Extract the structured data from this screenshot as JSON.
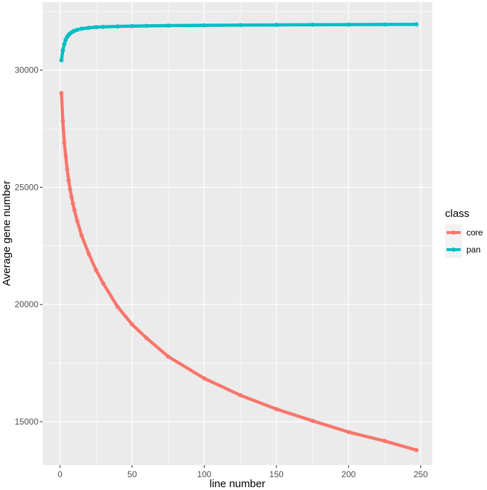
{
  "chart_data": {
    "type": "line",
    "xlabel": "line number",
    "ylabel": "Average gene number",
    "xlim": [
      -12,
      258
    ],
    "ylim": [
      13150,
      32900
    ],
    "x_ticks": [
      0,
      50,
      100,
      150,
      200,
      250
    ],
    "x_tick_labels": [
      "0",
      "50",
      "100",
      "150",
      "200",
      "250"
    ],
    "y_ticks": [
      15000,
      20000,
      25000,
      30000
    ],
    "y_tick_labels": [
      "15000",
      "20000",
      "25000",
      "30000"
    ],
    "grid": true,
    "legend": {
      "title": "class",
      "placement": "right"
    },
    "x": [
      1,
      2,
      3,
      4,
      5,
      6,
      7,
      8,
      9,
      10,
      12,
      15,
      20,
      25,
      30,
      40,
      50,
      60,
      75,
      100,
      125,
      150,
      175,
      200,
      225,
      247
    ],
    "series": [
      {
        "name": "core",
        "color": "#F8766D",
        "values": [
          29020,
          27830,
          26900,
          26330,
          25760,
          25300,
          24920,
          24590,
          24300,
          24030,
          23560,
          22940,
          22160,
          21470,
          20900,
          19900,
          19150,
          18570,
          17780,
          16850,
          16130,
          15540,
          15040,
          14560,
          14180,
          13790
        ]
      },
      {
        "name": "pan",
        "color": "#00BFC4",
        "values": [
          30420,
          30850,
          31110,
          31300,
          31420,
          31500,
          31560,
          31610,
          31645,
          31675,
          31720,
          31765,
          31805,
          31830,
          31845,
          31865,
          31878,
          31888,
          31898,
          31910,
          31920,
          31928,
          31935,
          31942,
          31948,
          31952
        ]
      }
    ]
  }
}
